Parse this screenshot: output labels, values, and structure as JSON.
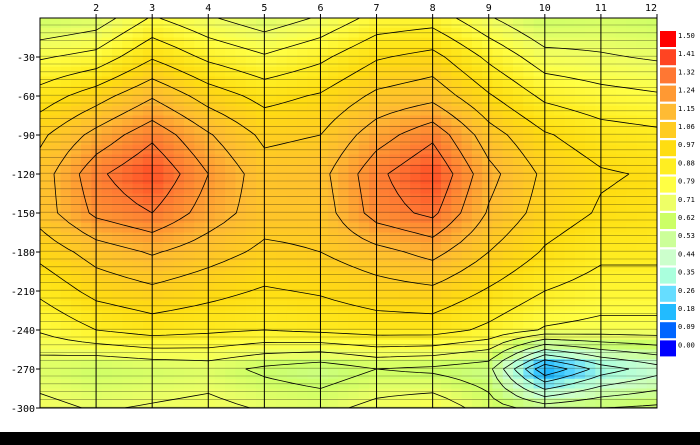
{
  "chart_data": {
    "type": "heatmap",
    "title": "",
    "xlabel": "",
    "ylabel": "",
    "x": [
      1,
      2,
      3,
      4,
      5,
      6,
      7,
      8,
      9,
      10,
      11,
      12
    ],
    "x_tick_labels": [
      "2",
      "3",
      "4",
      "5",
      "6",
      "7",
      "8",
      "9",
      "10",
      "11",
      "12"
    ],
    "xlim": [
      1,
      12
    ],
    "y": [
      0,
      -30,
      -60,
      -90,
      -120,
      -150,
      -180,
      -210,
      -240,
      -270,
      -300
    ],
    "y_tick_labels": [
      "-30",
      "-60",
      "-90",
      "-120",
      "-150",
      "-180",
      "-210",
      "-240",
      "-270",
      "-300"
    ],
    "ylim": [
      -300,
      0
    ],
    "values": [
      [
        0.62,
        0.66,
        0.8,
        0.72,
        0.66,
        0.72,
        0.82,
        0.84,
        0.72,
        0.62,
        0.64,
        0.62
      ],
      [
        0.78,
        0.82,
        0.96,
        0.86,
        0.8,
        0.86,
        0.96,
        1.0,
        0.86,
        0.74,
        0.72,
        0.7
      ],
      [
        0.92,
        1.02,
        1.14,
        1.02,
        0.94,
        0.98,
        1.08,
        1.12,
        0.98,
        0.86,
        0.82,
        0.8
      ],
      [
        1.04,
        1.18,
        1.3,
        1.16,
        1.04,
        1.06,
        1.2,
        1.3,
        1.1,
        0.98,
        0.92,
        0.9
      ],
      [
        1.1,
        1.3,
        1.4,
        1.24,
        1.1,
        1.12,
        1.3,
        1.4,
        1.18,
        1.04,
        0.98,
        0.96
      ],
      [
        1.1,
        1.26,
        1.32,
        1.2,
        1.1,
        1.1,
        1.28,
        1.34,
        1.14,
        1.02,
        0.96,
        0.94
      ],
      [
        1.0,
        1.1,
        1.16,
        1.1,
        1.04,
        1.06,
        1.12,
        1.18,
        1.06,
        0.96,
        0.9,
        0.9
      ],
      [
        0.9,
        1.0,
        1.04,
        1.0,
        0.96,
        0.98,
        1.02,
        1.04,
        0.96,
        0.88,
        0.84,
        0.84
      ],
      [
        0.8,
        0.88,
        0.92,
        0.9,
        0.88,
        0.9,
        0.92,
        0.92,
        0.86,
        0.78,
        0.76,
        0.76
      ],
      [
        0.66,
        0.62,
        0.64,
        0.66,
        0.6,
        0.56,
        0.62,
        0.6,
        0.56,
        0.1,
        0.3,
        0.4
      ],
      [
        0.74,
        0.7,
        0.72,
        0.74,
        0.7,
        0.68,
        0.74,
        0.78,
        0.66,
        0.58,
        0.62,
        0.64
      ]
    ],
    "colorbar": {
      "labels": [
        "1.50",
        "1.41",
        "1.32",
        "1.24",
        "1.15",
        "1.06",
        "0.97",
        "0.88",
        "0.79",
        "0.71",
        "0.62",
        "0.53",
        "0.44",
        "0.35",
        "0.26",
        "0.18",
        "0.09",
        "0.00"
      ],
      "colors": [
        "#ff0000",
        "#ff4422",
        "#ff7733",
        "#ff9933",
        "#ffbb33",
        "#ffcc22",
        "#ffdd11",
        "#ffee22",
        "#ffff44",
        "#eeff66",
        "#ccff66",
        "#ccff99",
        "#ccffcc",
        "#aaffdd",
        "#66ddff",
        "#22bbff",
        "#0066ff",
        "#0000ff"
      ],
      "range": [
        0,
        1.5
      ]
    },
    "grid": true,
    "legend": "right"
  }
}
